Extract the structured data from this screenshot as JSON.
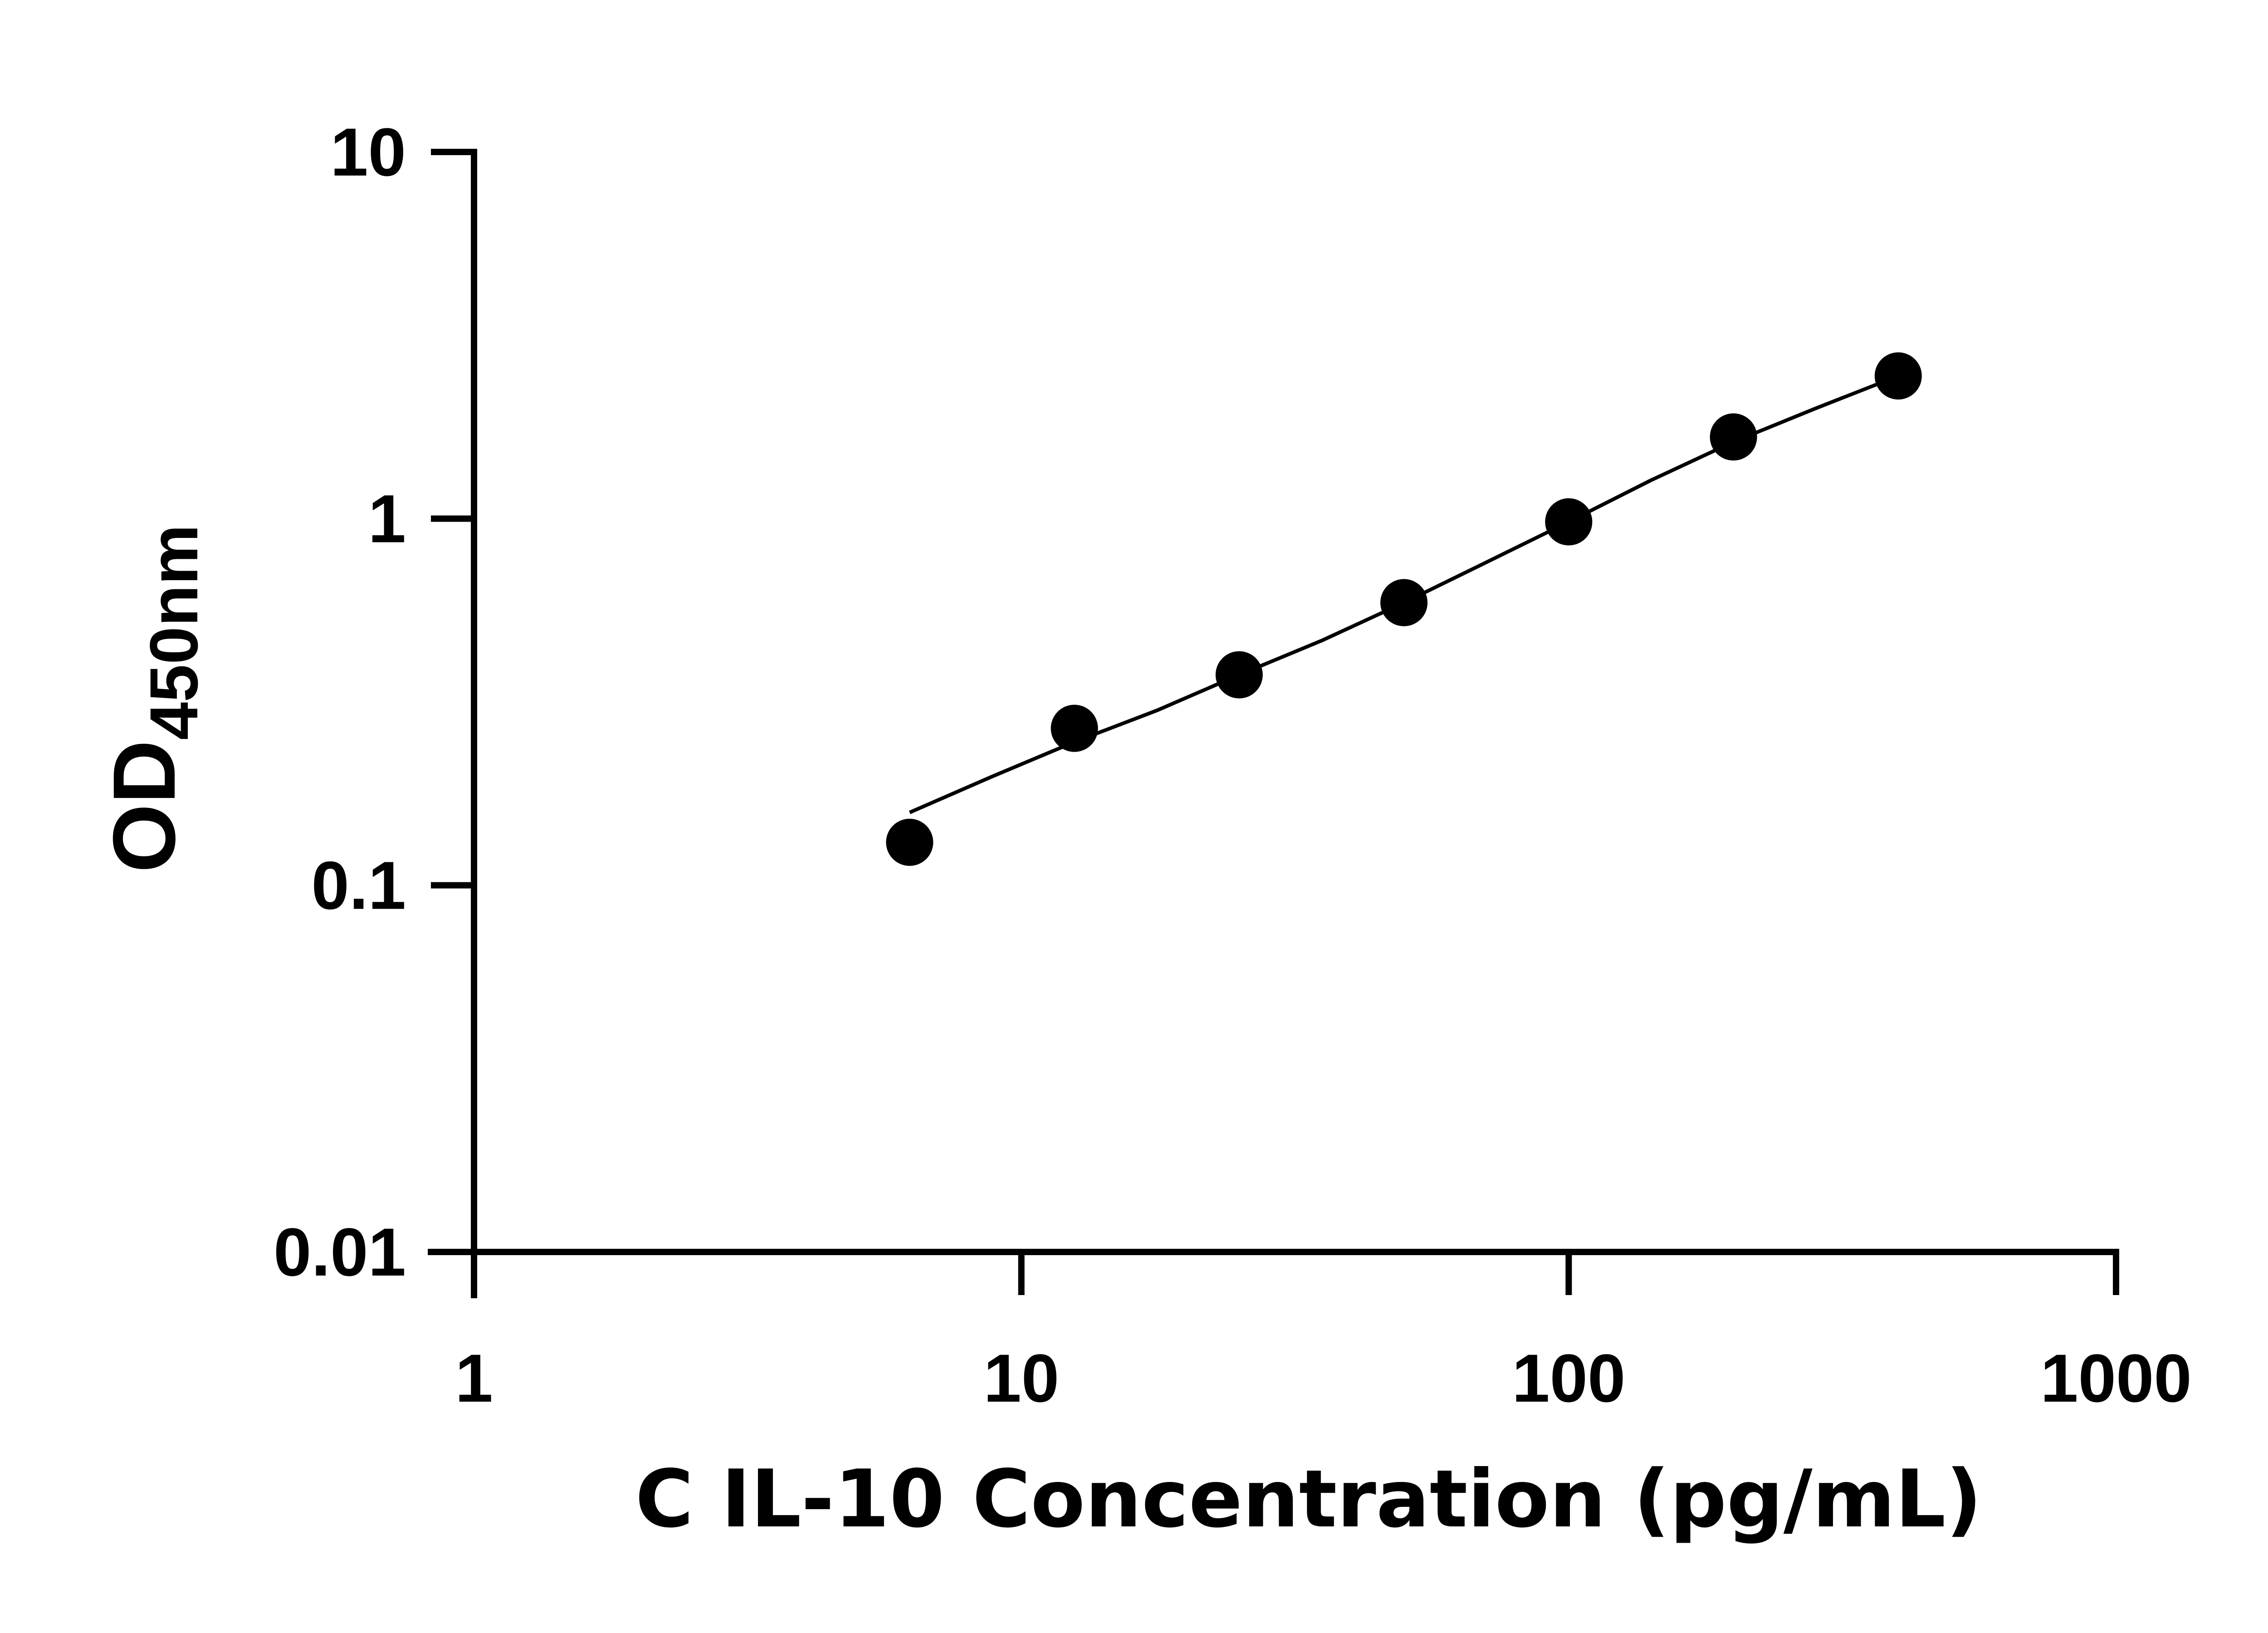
{
  "chart_data": {
    "type": "scatter",
    "title": "",
    "xlabel": "C IL-10 Concentration (pg/mL)",
    "ylabel": {
      "main": "OD",
      "subscript": "450nm"
    },
    "xscale": "log",
    "yscale": "log",
    "xlim": [
      1,
      1000
    ],
    "ylim": [
      0.01,
      10
    ],
    "xticks": [
      {
        "value": 1,
        "label": "1"
      },
      {
        "value": 10,
        "label": "10"
      },
      {
        "value": 100,
        "label": "100"
      },
      {
        "value": 1000,
        "label": "1000"
      }
    ],
    "yticks": [
      {
        "value": 0.01,
        "label": "0.01"
      },
      {
        "value": 0.1,
        "label": "0.1"
      },
      {
        "value": 1,
        "label": "1"
      },
      {
        "value": 10,
        "label": "10"
      }
    ],
    "grid": false,
    "legend": "none",
    "series": [
      {
        "type": "scatter",
        "color": "#000000",
        "points": [
          {
            "x": 6.25,
            "y": 0.131
          },
          {
            "x": 12.5,
            "y": 0.268
          },
          {
            "x": 25,
            "y": 0.375
          },
          {
            "x": 50,
            "y": 0.59
          },
          {
            "x": 100,
            "y": 0.98
          },
          {
            "x": 200,
            "y": 1.67
          },
          {
            "x": 400,
            "y": 2.45
          }
        ]
      },
      {
        "type": "line",
        "color": "#000000",
        "points": [
          {
            "x": 6.25,
            "y": 0.158
          },
          {
            "x": 8.84,
            "y": 0.198
          },
          {
            "x": 12.5,
            "y": 0.246
          },
          {
            "x": 17.7,
            "y": 0.3
          },
          {
            "x": 25,
            "y": 0.375
          },
          {
            "x": 35.4,
            "y": 0.465
          },
          {
            "x": 50,
            "y": 0.59
          },
          {
            "x": 70.7,
            "y": 0.76
          },
          {
            "x": 100,
            "y": 0.98
          },
          {
            "x": 141,
            "y": 1.27
          },
          {
            "x": 200,
            "y": 1.62
          },
          {
            "x": 283,
            "y": 2.0
          },
          {
            "x": 400,
            "y": 2.45
          }
        ]
      }
    ]
  }
}
